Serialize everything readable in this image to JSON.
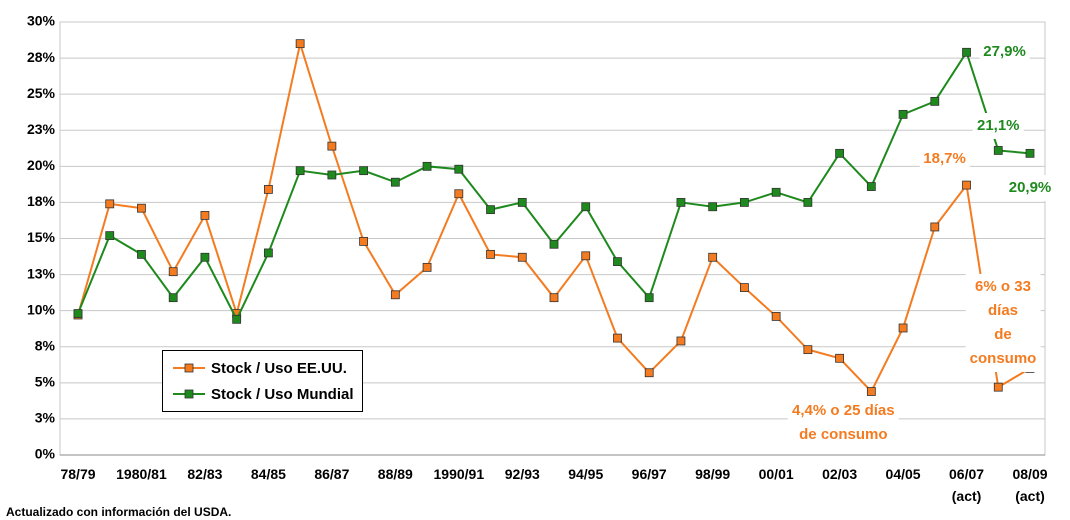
{
  "chart_data": {
    "type": "line",
    "categories": [
      "78/79",
      null,
      "1980/81",
      null,
      "82/83",
      null,
      "84/85",
      null,
      "86/87",
      null,
      "88/89",
      null,
      "1990/91",
      null,
      "92/93",
      null,
      "94/95",
      null,
      "96/97",
      null,
      "98/99",
      null,
      "00/01",
      null,
      "02/03",
      null,
      "04/05",
      null,
      "06/07\n(act)",
      null,
      "08/09\n(act)"
    ],
    "series": [
      {
        "name": "Stock / Uso EE.UU.",
        "color": "#f47b20",
        "values": [
          9.7,
          17.4,
          17.1,
          12.7,
          16.6,
          9.8,
          18.4,
          28.5,
          21.4,
          14.8,
          11.1,
          13.0,
          18.1,
          13.9,
          13.7,
          10.9,
          13.8,
          8.1,
          5.7,
          7.9,
          13.7,
          11.6,
          9.6,
          7.3,
          6.7,
          4.4,
          8.8,
          15.8,
          18.7,
          4.7,
          6
        ],
        "value_labels": [
          null,
          null,
          null,
          null,
          null,
          null,
          null,
          null,
          null,
          null,
          null,
          null,
          null,
          null,
          null,
          null,
          null,
          null,
          null,
          null,
          null,
          null,
          null,
          null,
          null,
          "4,4% o 25 días\nde consumo",
          null,
          null,
          "18,7%",
          null,
          "6% o 33 días\nde consumo"
        ]
      },
      {
        "name": "Stock / Uso Mundial",
        "color": "#1e8a1e",
        "values": [
          9.8,
          15.2,
          13.9,
          10.9,
          13.7,
          9.4,
          14.0,
          19.7,
          19.4,
          19.7,
          18.9,
          20.0,
          19.8,
          17.0,
          17.5,
          14.6,
          17.2,
          13.4,
          10.9,
          17.5,
          17.2,
          17.5,
          18.2,
          17.5,
          20.9,
          18.6,
          23.6,
          24.5,
          27.9,
          21.1,
          20.9
        ],
        "value_labels": [
          null,
          null,
          null,
          null,
          null,
          null,
          null,
          null,
          null,
          null,
          null,
          null,
          null,
          null,
          null,
          null,
          null,
          null,
          null,
          null,
          null,
          null,
          null,
          null,
          null,
          null,
          null,
          null,
          "27,9%",
          "21,1%",
          "20,9%"
        ]
      }
    ],
    "ylim": [
      0,
      30
    ],
    "yticks": [
      {
        "value": 0,
        "label": "0%"
      },
      {
        "value": 2.5,
        "label": "3%"
      },
      {
        "value": 5,
        "label": "5%"
      },
      {
        "value": 7.5,
        "label": "8%"
      },
      {
        "value": 10,
        "label": "10%"
      },
      {
        "value": 12.5,
        "label": "13%"
      },
      {
        "value": 15,
        "label": "15%"
      },
      {
        "value": 17.5,
        "label": "18%"
      },
      {
        "value": 20,
        "label": "20%"
      },
      {
        "value": 22.5,
        "label": "23%"
      },
      {
        "value": 25,
        "label": "25%"
      },
      {
        "value": 27.5,
        "label": "28%"
      },
      {
        "value": 30,
        "label": "30%"
      }
    ],
    "grid": true,
    "legend_position": "lower left",
    "footnote": "Actualizado con información del USDA."
  }
}
